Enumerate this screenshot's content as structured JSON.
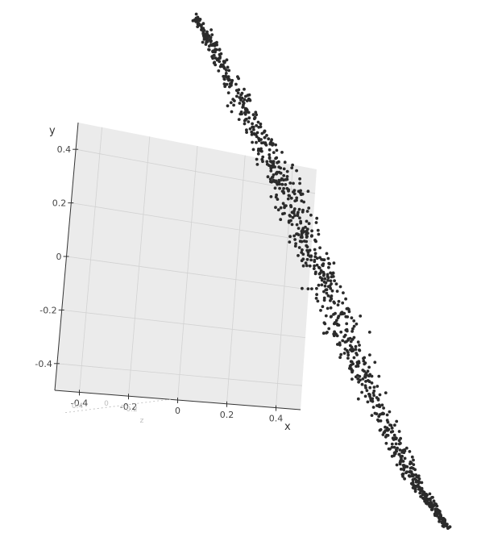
{
  "chart_data": {
    "type": "scatter",
    "projection": "3d-perspective",
    "title": "",
    "xlabel": "x",
    "ylabel": "y",
    "zlabel_faint": "z",
    "xlim": [
      -0.5,
      0.5
    ],
    "ylim": [
      -0.5,
      0.5
    ],
    "x_ticks": [
      "-0.4",
      "-0.2",
      "0",
      "0.2",
      "0.4"
    ],
    "y_ticks": [
      "-0.4",
      "-0.2",
      "0",
      "0.2",
      "0.4"
    ],
    "z_ticks_faint": [
      "0.4",
      "0",
      "-0.2"
    ],
    "grid": true,
    "legend": "none",
    "colors": {
      "points": "#2b2b2b",
      "pane": "#ebebeb",
      "grid": "#d2d2d2",
      "axis": "#333333"
    },
    "series": [
      {
        "shape": "elongated diagonal point cloud",
        "n_points": 1000,
        "x_range": [
          -0.55,
          0.85
        ],
        "y_range": [
          -1.45,
          0.62
        ],
        "z_range": [
          -0.5,
          0.5
        ]
      }
    ]
  }
}
